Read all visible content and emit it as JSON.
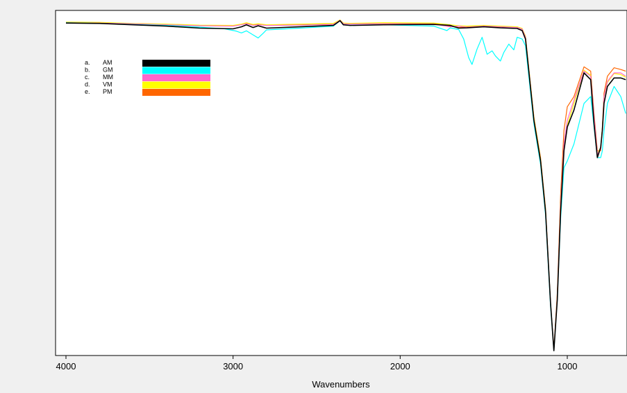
{
  "chart_data": {
    "type": "line",
    "title": "",
    "xlabel": "Wavenumbers",
    "ylabel": "",
    "xlim": [
      4000,
      650
    ],
    "x_reversed": true,
    "x_ticks": [
      4000,
      3000,
      2000,
      1000
    ],
    "x_tick_labels": [
      "4000",
      "3000",
      "2000",
      "1000"
    ],
    "ylim": [
      0,
      100
    ],
    "y_ticks_shown": false,
    "grid": false,
    "legend_position": "top-left",
    "legend": [
      {
        "letter": "a.",
        "name": "AM",
        "color": "#000000"
      },
      {
        "letter": "b.",
        "name": "GM",
        "color": "#00ffff"
      },
      {
        "letter": "c.",
        "name": "MM",
        "color": "#ff66cc"
      },
      {
        "letter": "d.",
        "name": "VM",
        "color": "#ffff00"
      },
      {
        "letter": "e.",
        "name": "PM",
        "color": "#ff6600"
      }
    ],
    "series": [
      {
        "name": "AM",
        "color": "#000000",
        "x": [
          4000,
          3800,
          3600,
          3400,
          3200,
          3000,
          2950,
          2920,
          2880,
          2850,
          2800,
          2600,
          2400,
          2360,
          2340,
          2300,
          2100,
          1800,
          1700,
          1650,
          1600,
          1500,
          1400,
          1300,
          1270,
          1250,
          1200,
          1160,
          1130,
          1100,
          1080,
          1060,
          1040,
          1020,
          1000,
          960,
          900,
          860,
          840,
          820,
          800,
          790,
          780,
          760,
          720,
          680,
          650
        ],
        "y": [
          97.7,
          97.6,
          97.2,
          96.8,
          96.2,
          96.0,
          96.6,
          97.2,
          96.4,
          96.9,
          96.2,
          96.6,
          97.0,
          98.4,
          97.2,
          97.0,
          97.2,
          97.3,
          97.0,
          96.2,
          96.3,
          96.6,
          96.3,
          96.1,
          95.5,
          93.0,
          69.0,
          57.0,
          42.0,
          15.0,
          1.0,
          16.0,
          42.0,
          60.0,
          67.0,
          72.0,
          83.0,
          81.0,
          68.0,
          58.0,
          61.0,
          66.0,
          74.0,
          79.0,
          81.5,
          81.5,
          81.0
        ]
      },
      {
        "name": "GM",
        "color": "#00ffff",
        "x": [
          4000,
          3800,
          3600,
          3400,
          3200,
          3050,
          2980,
          2950,
          2920,
          2880,
          2850,
          2820,
          2800,
          2600,
          2400,
          2360,
          2340,
          2300,
          2100,
          1800,
          1720,
          1700,
          1650,
          1620,
          1590,
          1570,
          1540,
          1510,
          1480,
          1450,
          1430,
          1400,
          1380,
          1350,
          1320,
          1300,
          1270,
          1250,
          1200,
          1160,
          1130,
          1100,
          1080,
          1060,
          1040,
          1020,
          1000,
          960,
          900,
          860,
          840,
          820,
          800,
          790,
          780,
          760,
          720,
          680,
          650
        ],
        "y": [
          97.8,
          97.6,
          97.3,
          97.0,
          96.5,
          96.0,
          95.3,
          94.8,
          95.4,
          94.2,
          93.3,
          94.7,
          95.7,
          96.2,
          96.8,
          98.4,
          97.2,
          97.0,
          97.2,
          96.8,
          95.5,
          96.3,
          95.8,
          93.0,
          87.5,
          85.5,
          90.0,
          93.5,
          88.5,
          89.5,
          88.0,
          86.5,
          89.0,
          91.5,
          89.8,
          93.5,
          93.0,
          91.0,
          68.0,
          56.0,
          41.0,
          14.0,
          1.0,
          16.0,
          40.0,
          55.0,
          57.0,
          62.0,
          74.0,
          76.0,
          67.0,
          58.0,
          58.0,
          60.0,
          66.0,
          74.0,
          79.0,
          76.0,
          71.0
        ]
      },
      {
        "name": "MM",
        "color": "#ff66cc",
        "x": [
          4000,
          3800,
          3600,
          3400,
          3200,
          3000,
          2950,
          2920,
          2880,
          2850,
          2800,
          2600,
          2400,
          2360,
          2340,
          2300,
          2100,
          1800,
          1700,
          1650,
          1600,
          1500,
          1400,
          1300,
          1270,
          1250,
          1200,
          1160,
          1130,
          1100,
          1080,
          1060,
          1040,
          1020,
          1000,
          960,
          900,
          860,
          840,
          820,
          800,
          790,
          780,
          760,
          720,
          680,
          650
        ],
        "y": [
          97.8,
          97.7,
          97.5,
          97.2,
          96.9,
          96.8,
          97.2,
          97.5,
          97.0,
          97.2,
          97.0,
          97.1,
          97.3,
          98.5,
          97.5,
          97.4,
          97.5,
          97.4,
          96.6,
          96.8,
          96.5,
          96.8,
          96.6,
          96.4,
          95.9,
          93.5,
          69.5,
          57.0,
          42.0,
          15.0,
          1.0,
          17.0,
          44.0,
          62.0,
          69.0,
          75.0,
          83.5,
          82.0,
          70.0,
          59.0,
          60.5,
          66.0,
          76.0,
          80.5,
          83.0,
          83.0,
          82.0
        ]
      },
      {
        "name": "VM",
        "color": "#ffff00",
        "x": [
          4000,
          3800,
          3600,
          3400,
          3200,
          3000,
          2950,
          2920,
          2880,
          2850,
          2800,
          2600,
          2400,
          2360,
          2340,
          2300,
          2100,
          1800,
          1700,
          1650,
          1600,
          1500,
          1400,
          1300,
          1270,
          1250,
          1200,
          1160,
          1130,
          1100,
          1080,
          1060,
          1040,
          1020,
          1000,
          960,
          900,
          860,
          840,
          820,
          800,
          790,
          780,
          760,
          720,
          680,
          650
        ],
        "y": [
          98.0,
          97.9,
          97.6,
          97.4,
          97.1,
          97.0,
          97.4,
          97.8,
          97.3,
          97.5,
          97.2,
          97.4,
          97.6,
          98.6,
          97.7,
          97.6,
          97.8,
          97.7,
          97.2,
          96.9,
          96.8,
          97.0,
          96.8,
          96.6,
          96.1,
          93.8,
          70.0,
          57.5,
          42.5,
          15.0,
          1.0,
          17.0,
          44.0,
          61.0,
          67.5,
          74.0,
          83.8,
          82.3,
          69.0,
          59.0,
          61.0,
          66.5,
          76.0,
          80.2,
          82.8,
          82.5,
          81.7
        ]
      },
      {
        "name": "PM",
        "color": "#ff6600",
        "x": [
          4000,
          3800,
          3600,
          3400,
          3200,
          3000,
          2950,
          2920,
          2880,
          2850,
          2800,
          2600,
          2400,
          2360,
          2340,
          2300,
          2100,
          1800,
          1700,
          1650,
          1600,
          1500,
          1400,
          1300,
          1270,
          1250,
          1200,
          1160,
          1130,
          1100,
          1080,
          1060,
          1040,
          1020,
          1000,
          960,
          900,
          860,
          840,
          820,
          800,
          790,
          780,
          760,
          720,
          680,
          650
        ],
        "y": [
          97.9,
          97.8,
          97.5,
          97.3,
          97.0,
          96.9,
          97.3,
          97.7,
          97.1,
          97.4,
          97.1,
          97.3,
          97.5,
          98.6,
          97.6,
          97.5,
          97.7,
          97.6,
          96.8,
          96.4,
          96.6,
          96.9,
          96.7,
          96.5,
          96.0,
          93.8,
          70.0,
          58.0,
          43.0,
          15.0,
          1.5,
          18.0,
          47.0,
          66.0,
          73.0,
          76.0,
          84.8,
          83.5,
          71.0,
          60.0,
          60.0,
          67.0,
          77.0,
          82.0,
          84.5,
          84.0,
          83.5
        ]
      }
    ]
  }
}
